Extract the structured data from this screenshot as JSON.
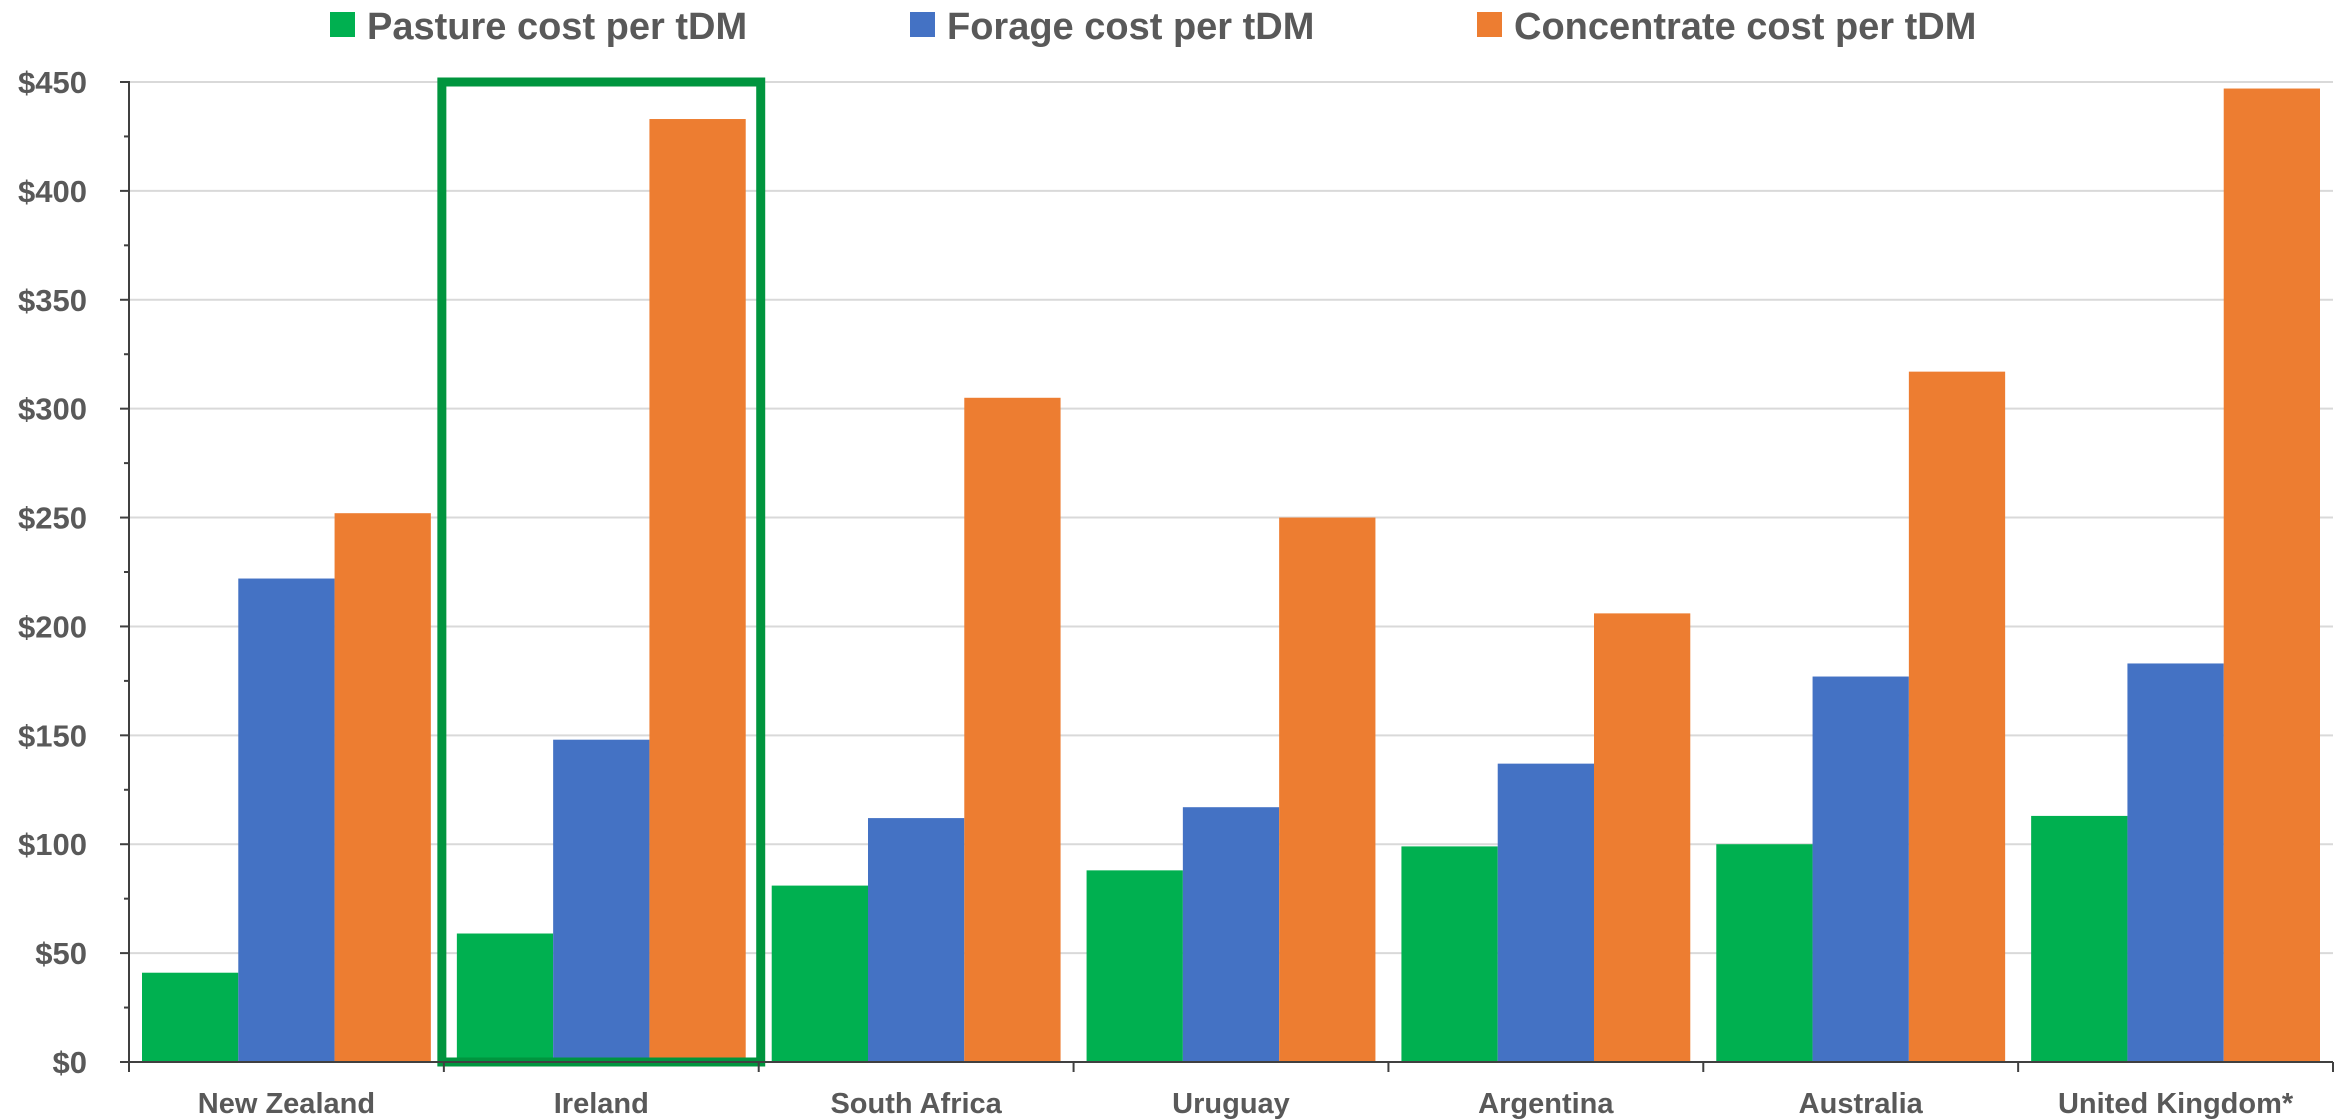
{
  "chart_data": {
    "type": "bar",
    "title": "",
    "xlabel": "",
    "ylabel": "",
    "categories": [
      "New Zealand",
      "Ireland",
      "South Africa",
      "Uruguay",
      "Argentina",
      "Australia",
      "United Kingdom*"
    ],
    "series": [
      {
        "name": "Pasture cost per tDM",
        "color": "#00b050",
        "values": [
          41,
          59,
          81,
          88,
          99,
          100,
          113
        ]
      },
      {
        "name": "Forage cost per tDM",
        "color": "#4472c4",
        "values": [
          222,
          148,
          112,
          117,
          137,
          177,
          183
        ]
      },
      {
        "name": "Concentrate cost per tDM",
        "color": "#ed7d31",
        "values": [
          252,
          433,
          305,
          250,
          206,
          317,
          447
        ]
      }
    ],
    "ylim": [
      0,
      450
    ],
    "yticks": [
      0,
      50,
      100,
      150,
      200,
      250,
      300,
      350,
      400,
      450
    ],
    "ytick_labels": [
      "$0",
      "$50",
      "$100",
      "$150",
      "$200",
      "$250",
      "$300",
      "$350",
      "$400",
      "$450"
    ],
    "grid": true,
    "legend_position": "top",
    "highlight": {
      "category": "Ireland",
      "color": "#00953e"
    }
  }
}
